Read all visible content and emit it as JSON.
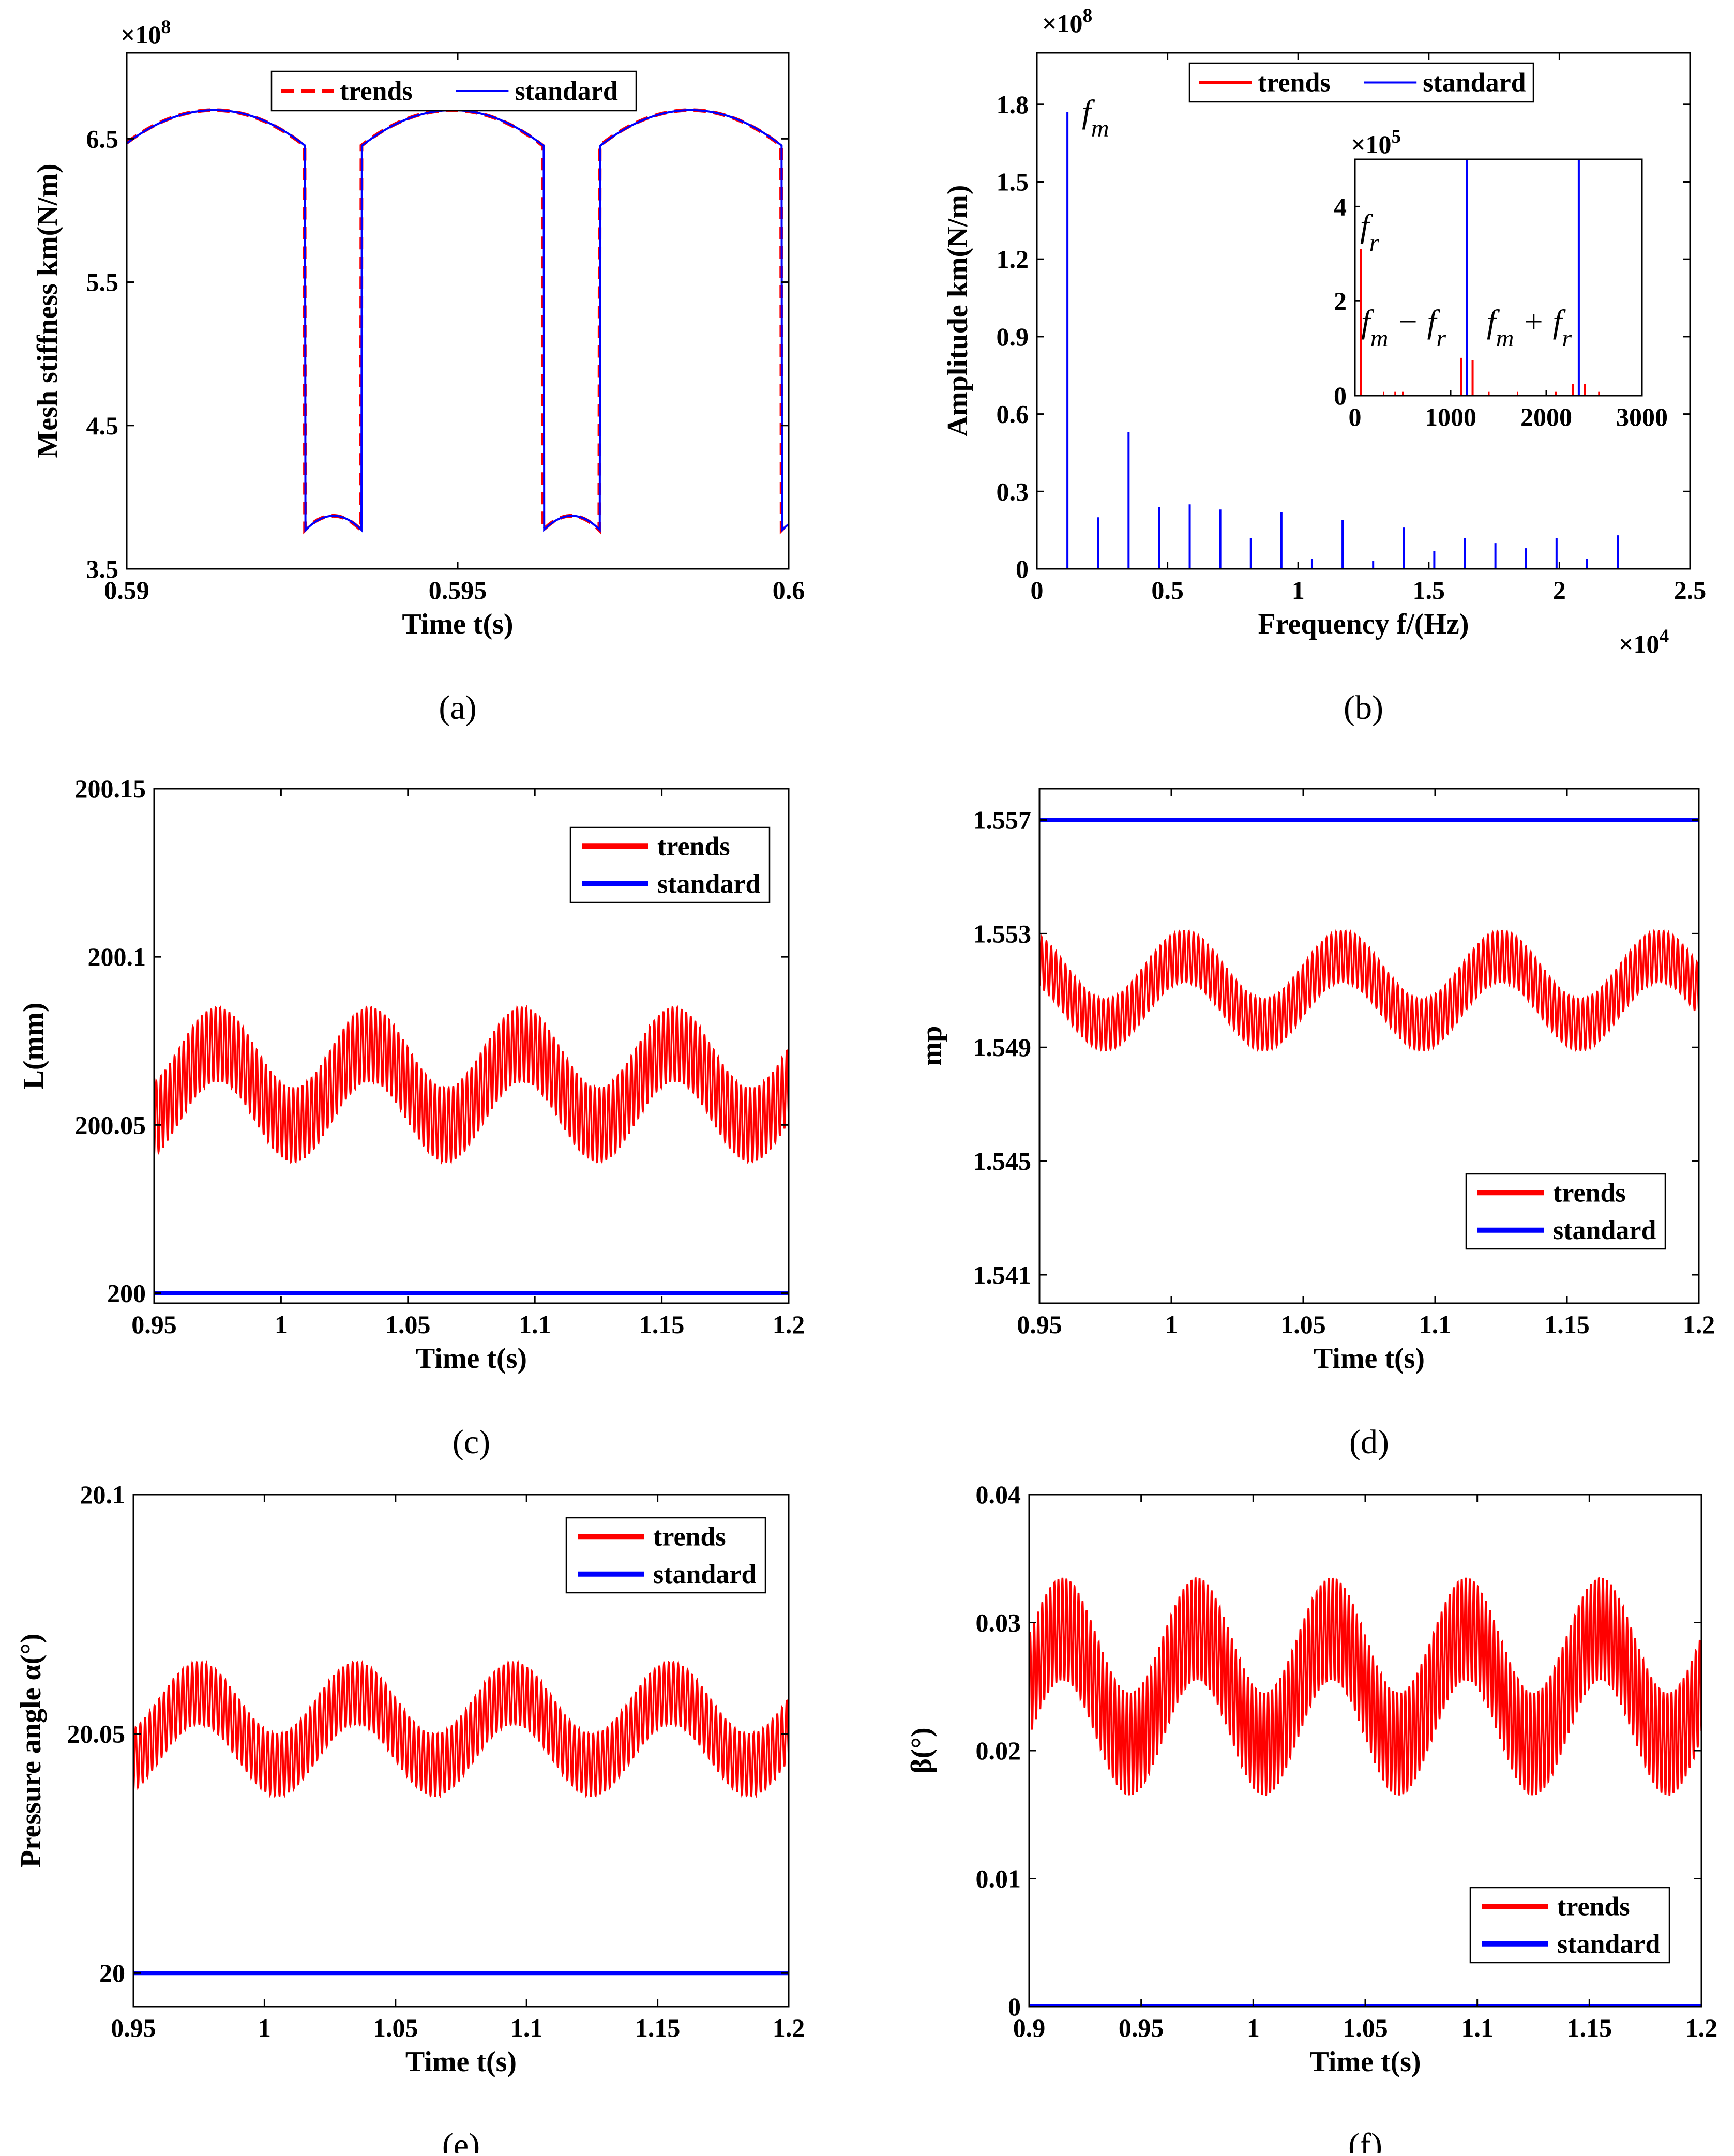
{
  "chart_data": [
    {
      "id": "a",
      "type": "line",
      "caption": "(a)",
      "xlabel": "Time t(s)",
      "ylabel": "Mesh stiffness km(N/m)",
      "xlim": [
        0.59,
        0.6
      ],
      "ylim": [
        3.5,
        7.1
      ],
      "x_ticks": [
        0.59,
        0.595,
        0.6
      ],
      "x_tick_labels": [
        "0.59",
        "0.595",
        "0.6"
      ],
      "y_ticks": [
        3.5,
        4.5,
        5.5,
        6.5
      ],
      "y_tick_labels": [
        "3.5",
        "4.5",
        "5.5",
        "6.5"
      ],
      "y_multiplier": "×10",
      "y_multiplier_exp": "8",
      "legend_position": "top-center",
      "period": 0.0036,
      "high_duration": 0.00085,
      "phase_start": 0.58995,
      "high_min": 6.45,
      "high_max": 6.7,
      "low_min": 3.77,
      "low_max": 3.87,
      "series": [
        {
          "name": "trends",
          "color": "#ff0000",
          "style": "dashed"
        },
        {
          "name": "standard",
          "color": "#0000ff",
          "style": "solid"
        }
      ]
    },
    {
      "id": "b",
      "type": "bar",
      "caption": "(b)",
      "xlabel": "Frequency f/(Hz)",
      "ylabel": "Amplitude km(N/m)",
      "xlim": [
        0,
        2.5
      ],
      "ylim": [
        0,
        2.0
      ],
      "x_ticks": [
        0,
        0.5,
        1,
        1.5,
        2,
        2.5
      ],
      "x_tick_labels": [
        "0",
        "0.5",
        "1",
        "1.5",
        "2",
        "2.5"
      ],
      "y_ticks": [
        0,
        0.3,
        0.6,
        0.9,
        1.2,
        1.5,
        1.8
      ],
      "y_tick_labels": [
        "0",
        "0.3",
        "0.6",
        "0.9",
        "1.2",
        "1.5",
        "1.8"
      ],
      "x_multiplier": "×10",
      "x_multiplier_exp": "4",
      "y_multiplier": "×10",
      "y_multiplier_exp": "8",
      "legend_position": "top-center",
      "annotation_main": "f",
      "annotation_main_sub": "m",
      "series": [
        {
          "name": "trends",
          "color": "#ff0000"
        },
        {
          "name": "standard",
          "color": "#0000ff"
        }
      ],
      "standard_peaks": {
        "x": [
          0.117,
          0.234,
          0.351,
          0.468,
          0.585,
          0.702,
          0.819,
          0.936,
          1.053,
          1.17,
          1.287,
          1.404,
          1.521,
          1.638,
          1.755,
          1.872,
          1.989,
          2.106,
          2.223
        ],
        "y": [
          1.77,
          0.2,
          0.53,
          0.24,
          0.25,
          0.23,
          0.12,
          0.22,
          0.04,
          0.19,
          0.03,
          0.16,
          0.07,
          0.12,
          0.1,
          0.08,
          0.12,
          0.04,
          0.13
        ]
      },
      "inset": {
        "xlim": [
          0,
          3000
        ],
        "ylim": [
          0,
          5
        ],
        "x_ticks": [
          0,
          1000,
          2000,
          3000
        ],
        "x_tick_labels": [
          "0",
          "1000",
          "2000",
          "3000"
        ],
        "y_ticks": [
          0,
          2,
          4
        ],
        "y_tick_labels": [
          "0",
          "2",
          "4"
        ],
        "y_multiplier": "×10",
        "y_multiplier_exp": "5",
        "labels": {
          "fr": "f",
          "fr_sub": "r",
          "lower": "f",
          "lower_sub1": "m",
          "lower_op": " − f",
          "lower_sub2": "r",
          "upper": "f",
          "upper_sub1": "m",
          "upper_op": " + f",
          "upper_sub2": "r"
        },
        "standard_x": [
          1170,
          2340
        ],
        "standard_y": [
          5,
          5
        ],
        "trends_x": [
          60,
          1110,
          1230,
          2280,
          2400
        ],
        "trends_y": [
          3.1,
          0.8,
          0.75,
          0.25,
          0.25
        ]
      }
    },
    {
      "id": "c",
      "type": "line",
      "caption": "(c)",
      "xlabel": "Time t(s)",
      "ylabel": "L(mm)",
      "xlim": [
        0.95,
        1.2
      ],
      "ylim": [
        199.997,
        200.15
      ],
      "x_ticks": [
        0.95,
        1,
        1.05,
        1.1,
        1.15,
        1.2
      ],
      "x_tick_labels": [
        "0.95",
        "1",
        "1.05",
        "1.1",
        "1.15",
        "1.2"
      ],
      "y_ticks": [
        200,
        200.05,
        200.1,
        200.15
      ],
      "y_tick_labels": [
        "200",
        "200.05",
        "200.1",
        "200.15"
      ],
      "legend_position": "top-right",
      "trends": {
        "mean": 200.062,
        "slow_amp": 0.012,
        "slow_period": 0.06,
        "peak_time": 0.975,
        "fast_amp": 0.011,
        "fast_period": 0.0018
      },
      "standard": 200,
      "series": [
        {
          "name": "trends",
          "color": "#ff0000"
        },
        {
          "name": "standard",
          "color": "#0000ff"
        }
      ]
    },
    {
      "id": "d",
      "type": "line",
      "caption": "(d)",
      "xlabel": "Time t(s)",
      "ylabel": "mp",
      "xlim": [
        0.95,
        1.2
      ],
      "ylim": [
        1.54,
        1.5581
      ],
      "x_ticks": [
        0.95,
        1,
        1.05,
        1.1,
        1.15,
        1.2
      ],
      "x_tick_labels": [
        "0.95",
        "1",
        "1.05",
        "1.1",
        "1.15",
        "1.2"
      ],
      "y_ticks": [
        1.541,
        1.545,
        1.549,
        1.553,
        1.557
      ],
      "y_tick_labels": [
        "1.541",
        "1.545",
        "1.549",
        "1.553",
        "1.557"
      ],
      "legend_position": "bottom-right",
      "trends": {
        "mean": 1.551,
        "slow_amp": 0.0012,
        "slow_period": 0.06,
        "peak_time": 1.005,
        "fast_amp": 0.0009,
        "fast_period": 0.0018
      },
      "standard": 1.557,
      "series": [
        {
          "name": "trends",
          "color": "#ff0000"
        },
        {
          "name": "standard",
          "color": "#0000ff"
        }
      ]
    },
    {
      "id": "e",
      "type": "line",
      "caption": "(e)",
      "xlabel": "Time t(s)",
      "ylabel": "Pressure angle α(°)",
      "xlim": [
        0.95,
        1.2
      ],
      "ylim": [
        19.993,
        20.1
      ],
      "x_ticks": [
        0.95,
        1,
        1.05,
        1.1,
        1.15,
        1.2
      ],
      "x_tick_labels": [
        "0.95",
        "1",
        "1.05",
        "1.1",
        "1.15",
        "1.2"
      ],
      "y_ticks": [
        20,
        20.05,
        20.1
      ],
      "y_tick_labels": [
        "20",
        "20.05",
        "20.1"
      ],
      "legend_position": "top-right",
      "trends": {
        "mean": 20.051,
        "slow_amp": 0.0075,
        "slow_period": 0.06,
        "peak_time": 0.975,
        "fast_amp": 0.0065,
        "fast_period": 0.0018
      },
      "standard": 20,
      "series": [
        {
          "name": "trends",
          "color": "#ff0000"
        },
        {
          "name": "standard",
          "color": "#0000ff"
        }
      ]
    },
    {
      "id": "f",
      "type": "line",
      "caption": "(f)",
      "xlabel": "Time t(s)",
      "ylabel": "β(°)",
      "xlim": [
        0.9,
        1.2
      ],
      "ylim": [
        0,
        0.04
      ],
      "x_ticks": [
        0.9,
        0.95,
        1,
        1.05,
        1.1,
        1.15,
        1.2
      ],
      "x_tick_labels": [
        "0.9",
        "0.95",
        "1",
        "1.05",
        "1.1",
        "1.15",
        "1.2"
      ],
      "y_ticks": [
        0,
        0.01,
        0.02,
        0.03,
        0.04
      ],
      "y_tick_labels": [
        "0",
        "0.01",
        "0.02",
        "0.03",
        "0.04"
      ],
      "legend_position": "bottom-right",
      "trends": {
        "mean": 0.025,
        "slow_amp": 0.0045,
        "slow_period": 0.06,
        "peak_time": 0.915,
        "fast_amp": 0.004,
        "fast_period": 0.0018
      },
      "standard": 0,
      "series": [
        {
          "name": "trends",
          "color": "#ff0000"
        },
        {
          "name": "standard",
          "color": "#0000ff"
        }
      ]
    }
  ]
}
